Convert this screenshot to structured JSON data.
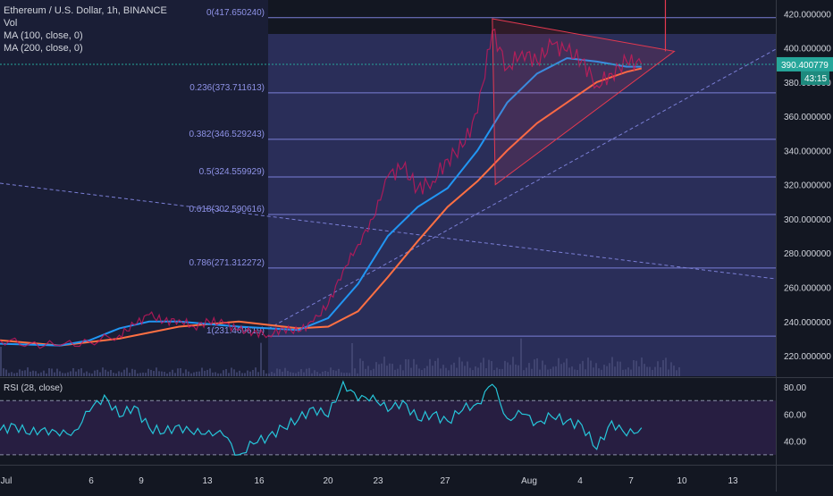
{
  "header": {
    "symbol_line": "Ethereum / U.S. Dollar, 1h, BINANCE",
    "vol_label": "Vol",
    "ma100_label": "MA (100, close, 0)",
    "ma200_label": "MA (200, close, 0)"
  },
  "rsi": {
    "label": "RSI (28, close)"
  },
  "colors": {
    "background": "#131722",
    "price_line": "#26c6da",
    "ma100": "#2196f3",
    "ma200": "#ff7043",
    "fib": "#7b7fd6",
    "triangle": "#e53950",
    "rsi_line": "#26c6da",
    "price_tag": "#26a69a",
    "timer_tag": "#1e8a7e"
  },
  "chart_data": {
    "type": "line",
    "ylim": [
      208,
      428
    ],
    "x_labels": [
      "Jul",
      "6",
      "9",
      "13",
      "16",
      "20",
      "23",
      "27",
      "Aug",
      "4",
      "7",
      "10",
      "13"
    ],
    "y_ticks": [
      "420.000000",
      "400.000000",
      "380.000000",
      "360.000000",
      "340.000000",
      "320.000000",
      "300.000000",
      "280.000000",
      "260.000000",
      "240.000000",
      "220.000000"
    ],
    "y_tick_values": [
      420,
      400,
      380,
      360,
      340,
      320,
      300,
      280,
      260,
      240,
      220
    ],
    "current_price": "390.400779",
    "current_price_value": 390.400779,
    "countdown": "43:15",
    "fib_levels": [
      {
        "ratio": "0",
        "label": "0(417.650240)",
        "value": 417.65024
      },
      {
        "ratio": "0.236",
        "label": "0.236(373.711613)",
        "value": 373.711613
      },
      {
        "ratio": "0.382",
        "label": "0.382(346.529243)",
        "value": 346.529243
      },
      {
        "ratio": "0.5",
        "label": "0.5(324.559929)",
        "value": 324.559929
      },
      {
        "ratio": "0.618",
        "label": "0.618(302.590616)",
        "value": 302.590616
      },
      {
        "ratio": "0.786",
        "label": "0.786(271.312272)",
        "value": 271.312272
      },
      {
        "ratio": "1",
        "label": "1(231.469619)",
        "value": 231.469619
      }
    ],
    "price_series": [
      {
        "t": 0,
        "v": 229
      },
      {
        "t": 2,
        "v": 227
      },
      {
        "t": 4,
        "v": 226
      },
      {
        "t": 6,
        "v": 228
      },
      {
        "t": 8,
        "v": 232
      },
      {
        "t": 9,
        "v": 238
      },
      {
        "t": 10,
        "v": 244
      },
      {
        "t": 11,
        "v": 240
      },
      {
        "t": 12,
        "v": 241
      },
      {
        "t": 13,
        "v": 237
      },
      {
        "t": 14,
        "v": 240
      },
      {
        "t": 15,
        "v": 239
      },
      {
        "t": 16,
        "v": 235
      },
      {
        "t": 17,
        "v": 234
      },
      {
        "t": 18,
        "v": 232
      },
      {
        "t": 19,
        "v": 236
      },
      {
        "t": 20,
        "v": 234
      },
      {
        "t": 21,
        "v": 240
      },
      {
        "t": 22,
        "v": 250
      },
      {
        "t": 23,
        "v": 270
      },
      {
        "t": 24,
        "v": 285
      },
      {
        "t": 25,
        "v": 300
      },
      {
        "t": 26,
        "v": 325
      },
      {
        "t": 27,
        "v": 330
      },
      {
        "t": 28,
        "v": 318
      },
      {
        "t": 29,
        "v": 322
      },
      {
        "t": 30,
        "v": 335
      },
      {
        "t": 31,
        "v": 342
      },
      {
        "t": 32,
        "v": 362
      },
      {
        "t": 33,
        "v": 410
      },
      {
        "t": 34,
        "v": 388
      },
      {
        "t": 35,
        "v": 398
      },
      {
        "t": 36,
        "v": 392
      },
      {
        "t": 37,
        "v": 402
      },
      {
        "t": 38,
        "v": 398
      },
      {
        "t": 39,
        "v": 393
      },
      {
        "t": 40,
        "v": 378
      },
      {
        "t": 41,
        "v": 385
      },
      {
        "t": 42,
        "v": 392
      },
      {
        "t": 43,
        "v": 390.4
      }
    ],
    "ma100_series": [
      {
        "t": 0,
        "v": 227
      },
      {
        "t": 4,
        "v": 226
      },
      {
        "t": 6,
        "v": 229
      },
      {
        "t": 8,
        "v": 236
      },
      {
        "t": 10,
        "v": 240
      },
      {
        "t": 12,
        "v": 240
      },
      {
        "t": 16,
        "v": 237
      },
      {
        "t": 20,
        "v": 235
      },
      {
        "t": 22,
        "v": 242
      },
      {
        "t": 24,
        "v": 262
      },
      {
        "t": 26,
        "v": 290
      },
      {
        "t": 28,
        "v": 307
      },
      {
        "t": 30,
        "v": 318
      },
      {
        "t": 32,
        "v": 340
      },
      {
        "t": 34,
        "v": 368
      },
      {
        "t": 36,
        "v": 385
      },
      {
        "t": 38,
        "v": 394
      },
      {
        "t": 40,
        "v": 392
      },
      {
        "t": 42,
        "v": 389
      },
      {
        "t": 43,
        "v": 389
      }
    ],
    "ma200_series": [
      {
        "t": 0,
        "v": 229
      },
      {
        "t": 4,
        "v": 226
      },
      {
        "t": 8,
        "v": 230
      },
      {
        "t": 12,
        "v": 237
      },
      {
        "t": 16,
        "v": 240
      },
      {
        "t": 20,
        "v": 236
      },
      {
        "t": 22,
        "v": 237
      },
      {
        "t": 24,
        "v": 246
      },
      {
        "t": 26,
        "v": 266
      },
      {
        "t": 28,
        "v": 287
      },
      {
        "t": 30,
        "v": 307
      },
      {
        "t": 32,
        "v": 322
      },
      {
        "t": 34,
        "v": 340
      },
      {
        "t": 36,
        "v": 356
      },
      {
        "t": 38,
        "v": 368
      },
      {
        "t": 40,
        "v": 380
      },
      {
        "t": 42,
        "v": 386
      },
      {
        "t": 43,
        "v": 388
      }
    ],
    "rsi_ylim": [
      24,
      86
    ],
    "rsi_ticks": [
      "80.00",
      "60.00",
      "40.00"
    ],
    "rsi_tick_values": [
      80,
      60,
      40
    ],
    "rsi_bands": [
      70,
      30
    ],
    "rsi_series": [
      {
        "t": 0,
        "v": 48
      },
      {
        "t": 1,
        "v": 52
      },
      {
        "t": 2,
        "v": 45
      },
      {
        "t": 3,
        "v": 50
      },
      {
        "t": 4,
        "v": 44
      },
      {
        "t": 5,
        "v": 48
      },
      {
        "t": 6,
        "v": 62
      },
      {
        "t": 7,
        "v": 74
      },
      {
        "t": 8,
        "v": 58
      },
      {
        "t": 9,
        "v": 66
      },
      {
        "t": 10,
        "v": 50
      },
      {
        "t": 11,
        "v": 46
      },
      {
        "t": 12,
        "v": 52
      },
      {
        "t": 13,
        "v": 45
      },
      {
        "t": 14,
        "v": 48
      },
      {
        "t": 15,
        "v": 44
      },
      {
        "t": 16,
        "v": 30
      },
      {
        "t": 17,
        "v": 38
      },
      {
        "t": 18,
        "v": 44
      },
      {
        "t": 19,
        "v": 50
      },
      {
        "t": 20,
        "v": 56
      },
      {
        "t": 21,
        "v": 65
      },
      {
        "t": 22,
        "v": 58
      },
      {
        "t": 23,
        "v": 84
      },
      {
        "t": 24,
        "v": 70
      },
      {
        "t": 25,
        "v": 74
      },
      {
        "t": 26,
        "v": 62
      },
      {
        "t": 27,
        "v": 70
      },
      {
        "t": 28,
        "v": 56
      },
      {
        "t": 29,
        "v": 60
      },
      {
        "t": 30,
        "v": 55
      },
      {
        "t": 31,
        "v": 63
      },
      {
        "t": 32,
        "v": 68
      },
      {
        "t": 33,
        "v": 82
      },
      {
        "t": 34,
        "v": 57
      },
      {
        "t": 35,
        "v": 60
      },
      {
        "t": 36,
        "v": 54
      },
      {
        "t": 37,
        "v": 58
      },
      {
        "t": 38,
        "v": 55
      },
      {
        "t": 39,
        "v": 52
      },
      {
        "t": 40,
        "v": 34
      },
      {
        "t": 41,
        "v": 55
      },
      {
        "t": 42,
        "v": 44
      },
      {
        "t": 43,
        "v": 50
      }
    ]
  }
}
